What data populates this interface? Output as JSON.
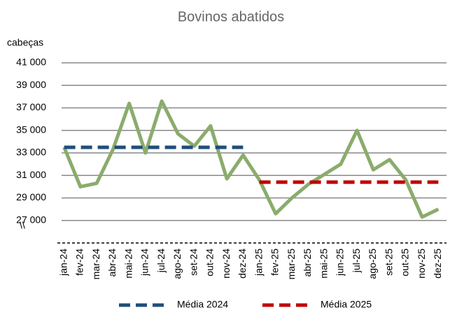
{
  "chart_data": {
    "type": "line",
    "title": "Bovinos abatidos",
    "y_label": "cabeças",
    "axis_break_label": "\\\\",
    "categories": [
      "jan-24",
      "fev-24",
      "mar-24",
      "abr-24",
      "mai-24",
      "jun-24",
      "jul-24",
      "ago-24",
      "set-24",
      "out-24",
      "nov-24",
      "dez-24",
      "jan-25",
      "fev-25",
      "mar-25",
      "abr-25",
      "mai-25",
      "jun-25",
      "jul-25",
      "ago-25",
      "set-25",
      "out-25",
      "nov-25",
      "dez-25"
    ],
    "series": [
      {
        "color": "#8aac6c",
        "values": [
          33500,
          30000,
          30300,
          33300,
          37400,
          33000,
          37600,
          34700,
          33600,
          35400,
          30700,
          32800,
          30600,
          27600,
          29000,
          30200,
          31100,
          32000,
          35000,
          31500,
          32400,
          30600,
          27300,
          28000
        ]
      },
      {
        "name": "Média 2024",
        "color": "#1f4e79",
        "dashed": true,
        "values": [
          33500,
          33500,
          33500,
          33500,
          33500,
          33500,
          33500,
          33500,
          33500,
          33500,
          33500,
          33500,
          null,
          null,
          null,
          null,
          null,
          null,
          null,
          null,
          null,
          null,
          null,
          null
        ]
      },
      {
        "name": "Média 2025",
        "color": "#c00000",
        "dashed": true,
        "values": [
          null,
          null,
          null,
          null,
          null,
          null,
          null,
          null,
          null,
          null,
          null,
          null,
          30400,
          30400,
          30400,
          30400,
          30400,
          30400,
          30400,
          30400,
          30400,
          30400,
          30400,
          30400
        ]
      }
    ],
    "ylim": [
      25000,
      41000
    ],
    "yticks": [
      {
        "value": 27000,
        "label": "27 000"
      },
      {
        "value": 29000,
        "label": "29 000"
      },
      {
        "value": 31000,
        "label": "31 000"
      },
      {
        "value": 33000,
        "label": "33 000"
      },
      {
        "value": 35000,
        "label": "35 000"
      },
      {
        "value": 37000,
        "label": "37 000"
      },
      {
        "value": 39000,
        "label": "39 000"
      },
      {
        "value": 41000,
        "label": "41 000"
      }
    ],
    "grid": true,
    "legend": "bottom"
  }
}
